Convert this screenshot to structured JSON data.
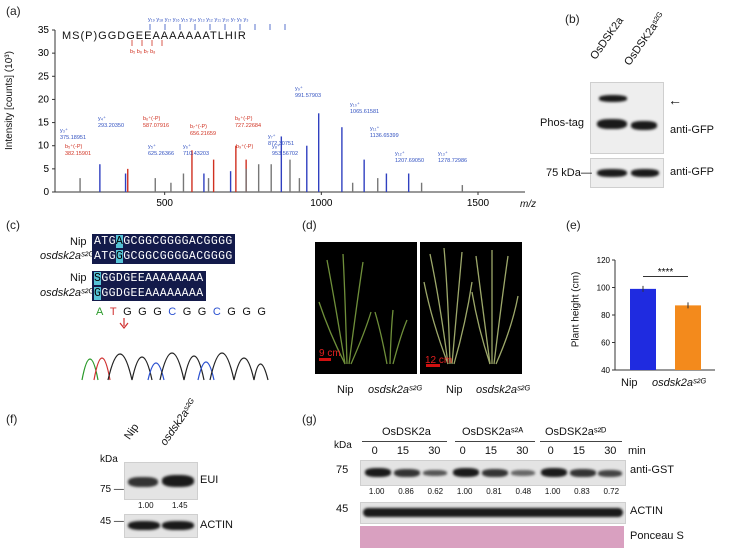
{
  "panel_labels": {
    "a": "(a)",
    "b": "(b)",
    "c": "(c)",
    "d": "(d)",
    "e": "(e)",
    "f": "(f)",
    "g": "(g)"
  },
  "panel_a": {
    "peptide": "MS(P)GGDGEEAAAAAAATLHIR",
    "ylabel": "Intensity [counts] (10³)",
    "xlabel": "m/z",
    "y_ticks": [
      "0",
      "5",
      "10",
      "15",
      "20",
      "25",
      "30",
      "35"
    ],
    "x_ticks": [
      "500",
      "1000",
      "1500"
    ],
    "peak_labels": [
      {
        "text": "y₃⁺\n375.18951",
        "color": "#3050c0"
      },
      {
        "text": "y₄⁺\n293.20350",
        "color": "#3050c0"
      },
      {
        "text": "b₅⁺(-P)\n382.15901",
        "color": "#d03020"
      },
      {
        "text": "y₅⁺\n625.26366",
        "color": "#3050c0"
      },
      {
        "text": "b₆⁺(-P)\n587.07916",
        "color": "#d03020"
      },
      {
        "text": "y₆⁺\n710.43203",
        "color": "#3050c0"
      },
      {
        "text": "b₇⁺(-P)\n656.21659",
        "color": "#d03020"
      },
      {
        "text": "b₈⁺(-P)\n727.22684",
        "color": "#d03020"
      },
      {
        "text": "y₇⁺\n872.30751",
        "color": "#3050c0"
      },
      {
        "text": "y₈⁺\n953.56702",
        "color": "#3050c0"
      },
      {
        "text": "y₉⁺\n991.57903",
        "color": "#3050c0"
      },
      {
        "text": "y₁₀⁺\n1065.61581",
        "color": "#3050c0"
      },
      {
        "text": "y₁₁⁺\n1136.65399",
        "color": "#3050c0"
      },
      {
        "text": "y₁₂⁺\n1207.69050",
        "color": "#3050c0"
      },
      {
        "text": "y₁₃⁺\n1278.72986",
        "color": "#3050c0"
      },
      {
        "text": "b₉⁺(-P)",
        "color": "#d03020"
      }
    ]
  },
  "chart_data": {
    "type": "bar",
    "title": "",
    "xlabel": "m/z",
    "ylabel": "Intensity [counts] (10³)",
    "ylim": [
      0,
      35
    ],
    "xlim": [
      150,
      1650
    ],
    "series": [
      {
        "name": "y ions",
        "color": "#3040c0",
        "x": [
          375.19,
          293.2,
          625.26,
          710.43,
          872.31,
          953.57,
          991.58,
          1065.62,
          1136.65,
          1207.69,
          1278.73
        ],
        "values": [
          4,
          6,
          4,
          4.5,
          12,
          10,
          17,
          14,
          7,
          4,
          4
        ]
      },
      {
        "name": "b ions",
        "color": "#d03020",
        "x": [
          382.16,
          587.08,
          656.22,
          727.23,
          760.0
        ],
        "values": [
          5,
          9,
          7,
          10,
          7
        ]
      },
      {
        "name": "other",
        "color": "#777777",
        "x": [
          230,
          470,
          520,
          560,
          640,
          760,
          800,
          840,
          900,
          930,
          1100,
          1180,
          1320,
          1450
        ],
        "values": [
          3,
          3,
          2,
          4,
          3,
          5,
          6,
          6,
          7,
          3,
          2,
          3,
          2,
          1.5
        ]
      }
    ]
  },
  "panel_b": {
    "lanes": [
      "OsDSK2a",
      "OsDSK2aˢ²ᴳ"
    ],
    "phos_tag_label": "Phos-tag",
    "antibody1": "anti-GFP",
    "antibody2": "anti-GFP",
    "marker": "75 kDa—",
    "arrow": "←"
  },
  "panel_c": {
    "row1_name": "Nip",
    "row2_name": "osdsk2aˢ²ᴳ",
    "dna1_pre": "ATG",
    "dna1_hl": "A",
    "dna1_post": "GCGGCGGGGACGGGG",
    "dna2_pre": "ATG",
    "dna2_hl": "G",
    "dna2_post": "GCGGCGGGGACGGGG",
    "prot1_name": "Nip",
    "prot2_name": "osdsk2aˢ²ᴳ",
    "prot1_hl": "S",
    "prot1_post": "GGDGEEAAAAAAAA",
    "prot2_hl": "G",
    "prot2_post": "GGDGEEAAAAAAAA",
    "chromatogram_seq": [
      "A",
      "T",
      "G",
      "G",
      "G",
      "C",
      "G",
      "G",
      "C",
      "G",
      "G",
      "G"
    ]
  },
  "panel_d": {
    "scale1": "9 cm",
    "scale2": "12 cm",
    "labels": [
      "Nip",
      "osdsk2aˢ²ᴳ",
      "Nip",
      "osdsk2aˢ²ᴳ"
    ]
  },
  "panel_e": {
    "ylabel": "Plant height (cm)",
    "y_ticks": [
      "40",
      "60",
      "80",
      "100",
      "120"
    ],
    "significance": "****",
    "categories": [
      "Nip",
      "osdsk2aˢ²ᴳ"
    ],
    "values": [
      99,
      87
    ],
    "colors": [
      "#1f2be0",
      "#f38a1c"
    ]
  },
  "panel_f": {
    "kda": "kDa",
    "lanes": [
      "Nip",
      "osdsk2aˢ²ᴳ"
    ],
    "marker1": "75 —",
    "marker2": "45 —",
    "label1": "EUI",
    "label2": "ACTIN",
    "quant": [
      "1.00",
      "1.45"
    ]
  },
  "panel_g": {
    "kda": "kDa",
    "groups": [
      "OsDSK2a",
      "OsDSK2aˢ²ᴬ",
      "OsDSK2aˢ²ᴰ"
    ],
    "times": [
      "0",
      "15",
      "30",
      "0",
      "15",
      "30",
      "0",
      "15",
      "30"
    ],
    "time_unit": "min",
    "marker1": "75",
    "marker2": "45",
    "label1": "anti-GST",
    "label2": "ACTIN",
    "label3": "Ponceau S",
    "quant": [
      "1.00",
      "0.86",
      "0.62",
      "1.00",
      "0.81",
      "0.48",
      "1.00",
      "0.83",
      "0.72"
    ]
  }
}
